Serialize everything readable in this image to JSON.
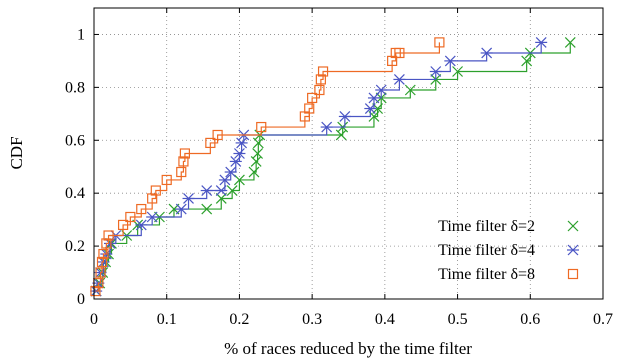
{
  "chart_data": {
    "type": "line",
    "subtype": "step-cdf-with-markers",
    "title": "",
    "xlabel": "% of races reduced by the time filter",
    "ylabel": "CDF",
    "xlim": [
      0,
      0.7
    ],
    "ylim": [
      0,
      1.1
    ],
    "xticks": [
      0,
      0.1,
      0.2,
      0.3,
      0.4,
      0.5,
      0.6,
      0.7
    ],
    "yticks": [
      0,
      0.2,
      0.4,
      0.6,
      0.8,
      1
    ],
    "xtick_labels": [
      "0",
      "0.1",
      "0.2",
      "0.3",
      "0.4",
      "0.5",
      "0.6",
      "0.7"
    ],
    "ytick_labels": [
      "0",
      "0.2",
      "0.4",
      "0.6",
      "0.8",
      "1"
    ],
    "grid": "dotted",
    "legend_position": "bottom-right",
    "series": [
      {
        "name": "Time filter δ=2",
        "color": "#2ca02c",
        "marker": "x",
        "points": [
          [
            0.003,
            0.03
          ],
          [
            0.008,
            0.06
          ],
          [
            0.012,
            0.1
          ],
          [
            0.016,
            0.14
          ],
          [
            0.02,
            0.17
          ],
          [
            0.024,
            0.21
          ],
          [
            0.045,
            0.24
          ],
          [
            0.06,
            0.28
          ],
          [
            0.09,
            0.31
          ],
          [
            0.11,
            0.34
          ],
          [
            0.155,
            0.34
          ],
          [
            0.175,
            0.38
          ],
          [
            0.19,
            0.41
          ],
          [
            0.2,
            0.45
          ],
          [
            0.22,
            0.48
          ],
          [
            0.223,
            0.52
          ],
          [
            0.225,
            0.55
          ],
          [
            0.226,
            0.59
          ],
          [
            0.228,
            0.62
          ],
          [
            0.34,
            0.62
          ],
          [
            0.342,
            0.65
          ],
          [
            0.385,
            0.69
          ],
          [
            0.39,
            0.72
          ],
          [
            0.395,
            0.76
          ],
          [
            0.435,
            0.79
          ],
          [
            0.47,
            0.83
          ],
          [
            0.5,
            0.86
          ],
          [
            0.595,
            0.9
          ],
          [
            0.6,
            0.93
          ],
          [
            0.655,
            0.97
          ]
        ]
      },
      {
        "name": "Time filter δ=4",
        "color": "#4a55c4",
        "marker": "star",
        "points": [
          [
            0.003,
            0.03
          ],
          [
            0.006,
            0.06
          ],
          [
            0.009,
            0.1
          ],
          [
            0.013,
            0.14
          ],
          [
            0.017,
            0.17
          ],
          [
            0.022,
            0.21
          ],
          [
            0.03,
            0.24
          ],
          [
            0.065,
            0.28
          ],
          [
            0.08,
            0.31
          ],
          [
            0.12,
            0.34
          ],
          [
            0.13,
            0.38
          ],
          [
            0.155,
            0.41
          ],
          [
            0.175,
            0.41
          ],
          [
            0.18,
            0.45
          ],
          [
            0.188,
            0.48
          ],
          [
            0.195,
            0.52
          ],
          [
            0.2,
            0.55
          ],
          [
            0.203,
            0.59
          ],
          [
            0.206,
            0.62
          ],
          [
            0.32,
            0.65
          ],
          [
            0.345,
            0.69
          ],
          [
            0.38,
            0.72
          ],
          [
            0.385,
            0.76
          ],
          [
            0.395,
            0.79
          ],
          [
            0.42,
            0.83
          ],
          [
            0.47,
            0.86
          ],
          [
            0.49,
            0.9
          ],
          [
            0.54,
            0.93
          ],
          [
            0.615,
            0.97
          ]
        ]
      },
      {
        "name": "Time filter δ=8",
        "color": "#ee6a24",
        "marker": "square",
        "points": [
          [
            0.002,
            0.03
          ],
          [
            0.006,
            0.06
          ],
          [
            0.009,
            0.1
          ],
          [
            0.011,
            0.14
          ],
          [
            0.013,
            0.17
          ],
          [
            0.017,
            0.21
          ],
          [
            0.02,
            0.24
          ],
          [
            0.04,
            0.28
          ],
          [
            0.05,
            0.31
          ],
          [
            0.065,
            0.34
          ],
          [
            0.08,
            0.38
          ],
          [
            0.085,
            0.41
          ],
          [
            0.1,
            0.45
          ],
          [
            0.12,
            0.48
          ],
          [
            0.123,
            0.52
          ],
          [
            0.125,
            0.55
          ],
          [
            0.16,
            0.59
          ],
          [
            0.17,
            0.62
          ],
          [
            0.23,
            0.65
          ],
          [
            0.29,
            0.69
          ],
          [
            0.296,
            0.72
          ],
          [
            0.3,
            0.76
          ],
          [
            0.31,
            0.79
          ],
          [
            0.312,
            0.83
          ],
          [
            0.315,
            0.86
          ],
          [
            0.41,
            0.9
          ],
          [
            0.415,
            0.93
          ],
          [
            0.42,
            0.93
          ],
          [
            0.475,
            0.97
          ]
        ]
      }
    ]
  }
}
